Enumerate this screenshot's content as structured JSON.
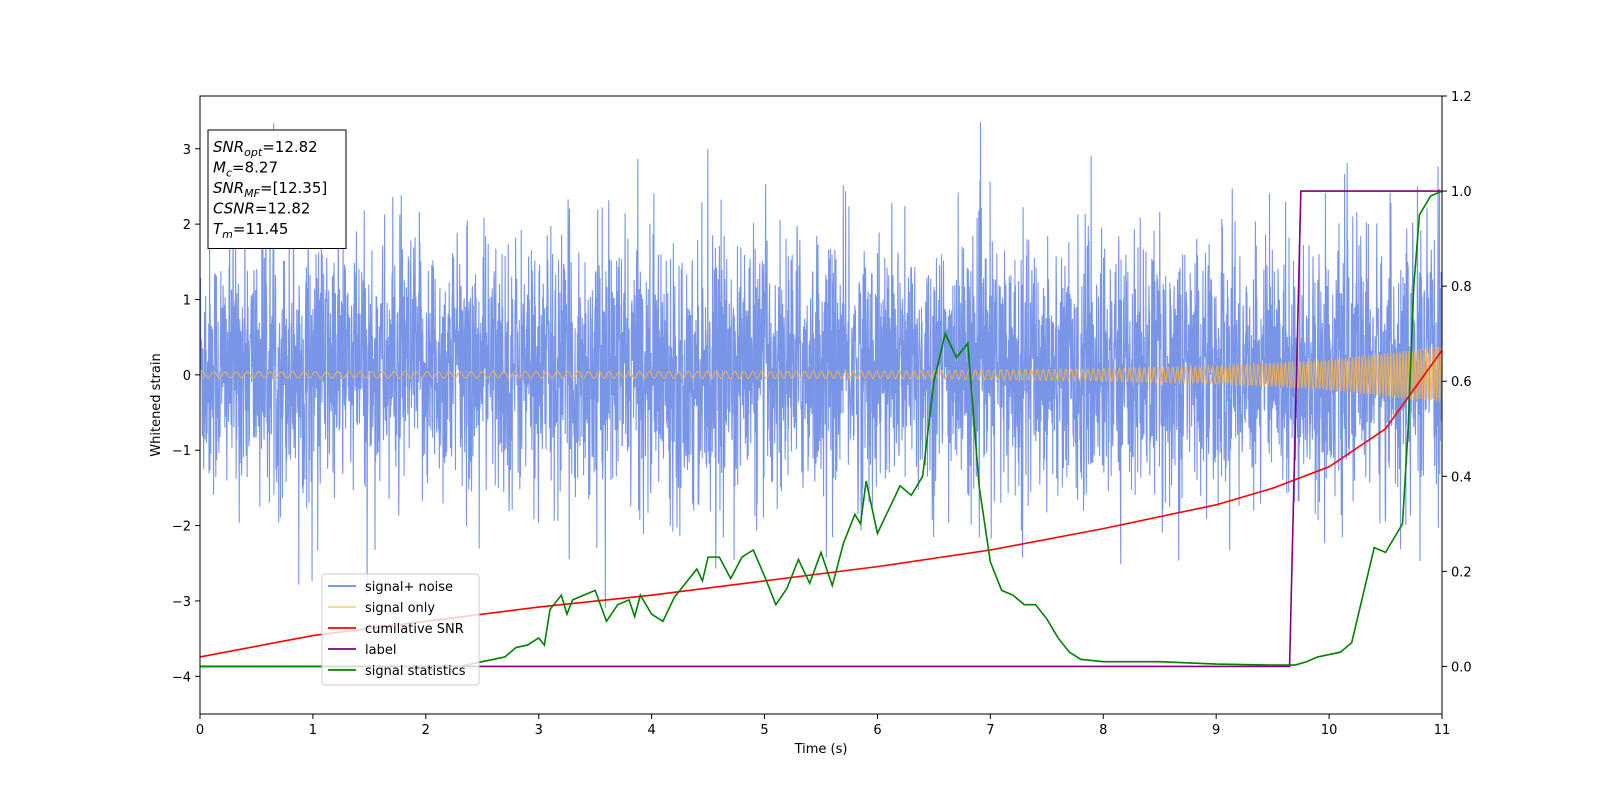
{
  "chart_data": {
    "type": "line",
    "xlabel": "Time (s)",
    "ylabel": "Whitened strain",
    "xlim": [
      0,
      11
    ],
    "ylim_left": [
      -4.5,
      3.7
    ],
    "ylim_right": [
      -0.1,
      1.2
    ],
    "x_ticks": [
      "0",
      "1",
      "2",
      "3",
      "4",
      "5",
      "6",
      "7",
      "8",
      "9",
      "10",
      "11"
    ],
    "y_ticks_left": [
      "−4",
      "−3",
      "−2",
      "−1",
      "0",
      "1",
      "2",
      "3"
    ],
    "y_ticks_right": [
      "0.0",
      "0.2",
      "0.4",
      "0.6",
      "0.8",
      "1.0",
      "1.2"
    ],
    "legend_position": "lower-left",
    "info_box": {
      "position": "upper-left",
      "lines": [
        {
          "sym": "SNR",
          "sub": "opt",
          "value": "=12.82"
        },
        {
          "sym": "M",
          "sub": "c",
          "value": "=8.27"
        },
        {
          "sym": "SNR",
          "sub": "MF",
          "value": "=[12.35]"
        },
        {
          "sym": "CSNR",
          "sub": "",
          "value": "=12.82"
        },
        {
          "sym": "T",
          "sub": "m",
          "value": "=11.45"
        }
      ]
    },
    "series": [
      {
        "name": "signal+ noise",
        "axis": "left",
        "color": "#6a89e5",
        "kind": "noise",
        "typical_band": [
          -1.5,
          1.7
        ],
        "peak_range": [
          -4.2,
          3.4
        ]
      },
      {
        "name": "signal only",
        "axis": "left",
        "color": "#f5b04a",
        "kind": "chirp",
        "amplitude": {
          "x": [
            0,
            6,
            8,
            9,
            10,
            11
          ],
          "y": [
            0.04,
            0.05,
            0.08,
            0.12,
            0.2,
            0.38
          ]
        }
      },
      {
        "name": "cumilative SNR",
        "axis": "right",
        "color": "#ff0000",
        "x": [
          0,
          1,
          2,
          3,
          4,
          5,
          6,
          7,
          8,
          9,
          9.5,
          10,
          10.5,
          11
        ],
        "y": [
          0.02,
          0.065,
          0.095,
          0.125,
          0.15,
          0.18,
          0.21,
          0.245,
          0.29,
          0.34,
          0.375,
          0.42,
          0.5,
          0.665
        ]
      },
      {
        "name": "label",
        "axis": "right",
        "color": "#800080",
        "x": [
          0,
          9.65,
          9.75,
          11
        ],
        "y": [
          0,
          0,
          1,
          1
        ]
      },
      {
        "name": "signal statistics",
        "axis": "right",
        "color": "#008000",
        "x": [
          0,
          2.3,
          2.5,
          2.7,
          2.8,
          2.9,
          3.0,
          3.05,
          3.1,
          3.2,
          3.25,
          3.3,
          3.4,
          3.5,
          3.6,
          3.7,
          3.8,
          3.85,
          3.9,
          4.0,
          4.1,
          4.2,
          4.3,
          4.4,
          4.45,
          4.5,
          4.6,
          4.7,
          4.8,
          4.9,
          5.0,
          5.1,
          5.2,
          5.3,
          5.4,
          5.5,
          5.6,
          5.7,
          5.8,
          5.85,
          5.9,
          6.0,
          6.1,
          6.2,
          6.3,
          6.4,
          6.5,
          6.6,
          6.7,
          6.8,
          6.9,
          7.0,
          7.1,
          7.2,
          7.3,
          7.4,
          7.5,
          7.6,
          7.7,
          7.8,
          8.0,
          8.5,
          9.0,
          9.5,
          9.7,
          9.8,
          9.9,
          10.0,
          10.1,
          10.2,
          10.3,
          10.4,
          10.5,
          10.6,
          10.65,
          10.7,
          10.75,
          10.8,
          10.9,
          11.0
        ],
        "y": [
          0.0,
          0.0,
          0.01,
          0.02,
          0.04,
          0.045,
          0.06,
          0.045,
          0.12,
          0.15,
          0.11,
          0.14,
          0.15,
          0.16,
          0.095,
          0.13,
          0.14,
          0.105,
          0.15,
          0.11,
          0.095,
          0.145,
          0.175,
          0.205,
          0.18,
          0.23,
          0.23,
          0.185,
          0.23,
          0.245,
          0.19,
          0.13,
          0.165,
          0.225,
          0.175,
          0.24,
          0.17,
          0.26,
          0.32,
          0.3,
          0.39,
          0.28,
          0.33,
          0.38,
          0.36,
          0.4,
          0.6,
          0.7,
          0.65,
          0.68,
          0.38,
          0.22,
          0.16,
          0.15,
          0.13,
          0.13,
          0.1,
          0.06,
          0.03,
          0.015,
          0.01,
          0.01,
          0.005,
          0.003,
          0.003,
          0.01,
          0.02,
          0.025,
          0.03,
          0.05,
          0.15,
          0.25,
          0.24,
          0.28,
          0.3,
          0.5,
          0.8,
          0.95,
          0.99,
          1.0
        ]
      }
    ]
  }
}
